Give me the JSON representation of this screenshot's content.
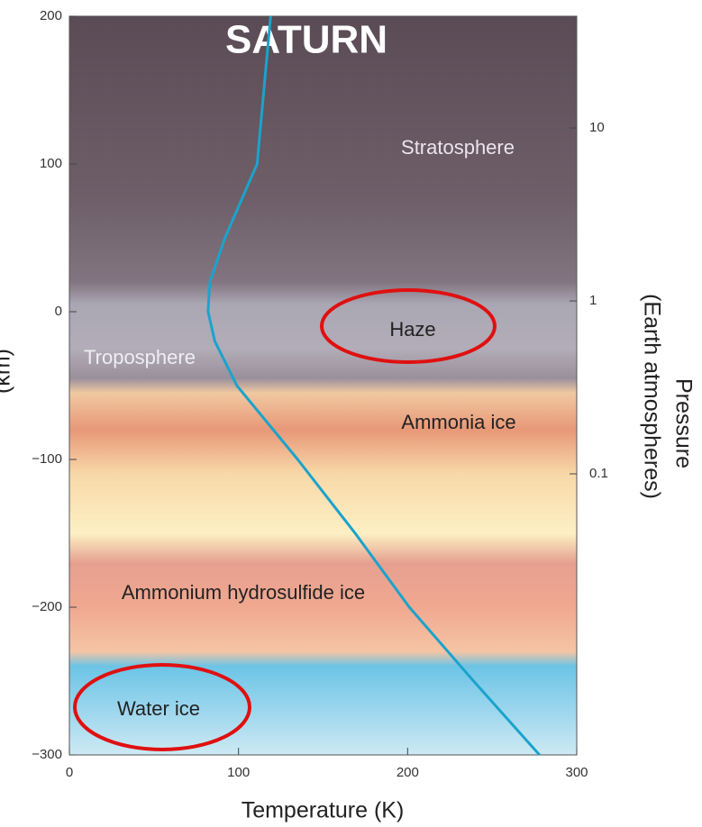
{
  "chart_data": {
    "type": "line",
    "title": "SATURN",
    "xlabel": "Temperature (K)",
    "ylabel": "(km)",
    "y2label": [
      "Pressure",
      "(Earth atmospheres)"
    ],
    "x": [
      119,
      111,
      92,
      83,
      82,
      86,
      99,
      135,
      169,
      201,
      239,
      278
    ],
    "values": [
      200,
      100,
      50,
      20,
      0,
      -20,
      -50,
      -100,
      -150,
      -200,
      -250,
      -300
    ],
    "color": "#1ba3cc",
    "xlim": [
      0,
      300
    ],
    "xticks": [
      0,
      100,
      200,
      300
    ],
    "ylim": [
      -300,
      200
    ],
    "yticks": [
      {
        "value": -300,
        "label": "−300"
      },
      {
        "value": -200,
        "label": "−200"
      },
      {
        "value": -100,
        "label": "−100"
      },
      0,
      100,
      200
    ],
    "y2lim": [
      0.00237,
      44.3
    ],
    "y2scale": "log",
    "y2ticks": [
      0.1,
      1,
      10
    ],
    "annotations": [
      "Stratosphere",
      "Haze",
      "Troposphere",
      "Ammonia ice",
      "Ammonium hydrosulfide ice",
      "Water ice"
    ]
  }
}
